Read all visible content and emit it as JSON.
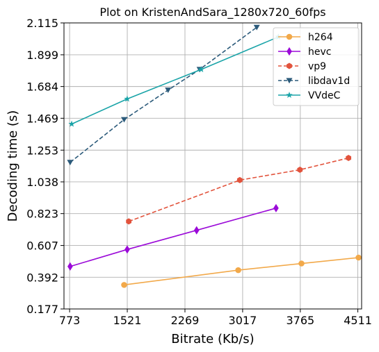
{
  "chart_data": {
    "type": "line",
    "title": "Plot on KristenAndSara_1280x720_60fps",
    "xlabel": "Bitrate (Kb/s)",
    "ylabel": "Decoding time (s)",
    "xlim": [
      700,
      4560
    ],
    "ylim": [
      0.177,
      2.115
    ],
    "xticks": [
      773,
      1521,
      2269,
      3017,
      3765,
      4511
    ],
    "yticks": [
      0.177,
      0.392,
      0.607,
      0.823,
      1.038,
      1.253,
      1.469,
      1.684,
      1.899,
      2.115
    ],
    "xtick_labels": [
      "773",
      "1521",
      "2269",
      "3017",
      "3765",
      "4511"
    ],
    "ytick_labels": [
      "0.177",
      "0.392",
      "0.607",
      "0.823",
      "1.038",
      "1.253",
      "1.469",
      "1.684",
      "1.899",
      "2.115"
    ],
    "grid": true,
    "legend_position": "top-right",
    "series": [
      {
        "name": "h264",
        "color": "#f2a94a",
        "marker": "circle",
        "dash": "solid",
        "x": [
          1480,
          2960,
          3780,
          4520
        ],
        "y": [
          0.34,
          0.44,
          0.485,
          0.525
        ]
      },
      {
        "name": "hevc",
        "color": "#9b0ad8",
        "marker": "diamond",
        "dash": "solid",
        "x": [
          780,
          1520,
          2420,
          3450
        ],
        "y": [
          0.465,
          0.58,
          0.71,
          0.86
        ]
      },
      {
        "name": "vp9",
        "color": "#e2533c",
        "marker": "hexagon",
        "dash": "dashed",
        "x": [
          1540,
          2980,
          3760,
          4390
        ],
        "y": [
          0.77,
          1.05,
          1.12,
          1.2
        ]
      },
      {
        "name": "libdav1d",
        "color": "#2b5a7a",
        "marker": "triangle-down",
        "dash": "dashed",
        "x": [
          780,
          1480,
          2050,
          2460,
          3200
        ],
        "y": [
          1.17,
          1.46,
          1.66,
          1.8,
          2.085
        ]
      },
      {
        "name": "VVdeC",
        "color": "#1aa4a8",
        "marker": "star",
        "dash": "solid",
        "x": [
          800,
          1520,
          2480,
          3480
        ],
        "y": [
          1.43,
          1.6,
          1.8,
          2.02
        ]
      }
    ]
  }
}
